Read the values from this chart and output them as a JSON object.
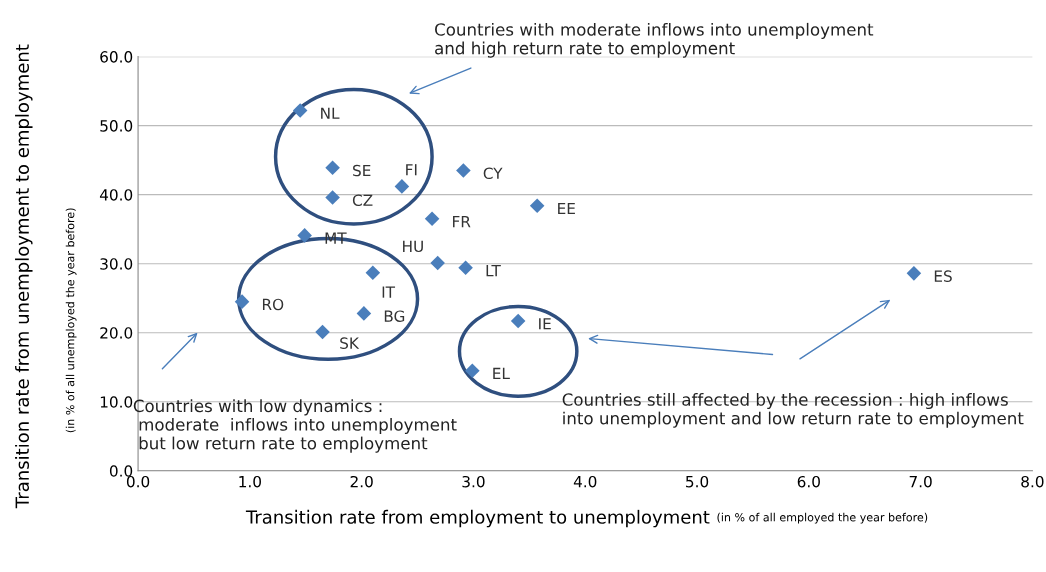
{
  "chart_data": {
    "type": "scatter",
    "xlabel": "Transition rate from employment to unemployment",
    "ylabel": "Transition rate from unemployment to employment",
    "x": [
      1.45,
      1.74,
      2.36,
      2.91,
      1.74,
      3.57,
      2.63,
      1.49,
      2.68,
      2.93,
      2.1,
      6.94,
      0.93,
      2.02,
      3.4,
      1.65,
      2.99
    ],
    "series": [
      {
        "color": "#4a7ebb",
        "values": [
          52.2,
          43.9,
          41.2,
          43.5,
          39.6,
          38.4,
          36.5,
          34.1,
          30.1,
          29.4,
          28.7,
          28.6,
          24.5,
          22.8,
          21.7,
          20.1,
          14.5
        ]
      }
    ],
    "marker": "diamond",
    "xlim": [
      0,
      8
    ],
    "ylim": [
      0,
      60
    ],
    "xticks": [
      {
        "value": 0,
        "label": "0.0"
      },
      {
        "value": 1,
        "label": "1.0"
      },
      {
        "value": 2,
        "label": "2.0"
      },
      {
        "value": 3,
        "label": "3.0"
      },
      {
        "value": 4,
        "label": "4.0"
      },
      {
        "value": 5,
        "label": "5.0"
      },
      {
        "value": 6,
        "label": "6.0"
      },
      {
        "value": 7,
        "label": "7.0"
      },
      {
        "value": 8,
        "label": "8.0"
      }
    ],
    "yticks": [
      {
        "value": 0,
        "label": "0.0"
      },
      {
        "value": 10,
        "label": "10.0"
      },
      {
        "value": 20,
        "label": "20.0"
      },
      {
        "value": 30,
        "label": "30.0"
      },
      {
        "value": 40,
        "label": "40.0"
      },
      {
        "value": 50,
        "label": "50.0"
      },
      {
        "value": 60,
        "label": "60.0"
      }
    ],
    "grid": "y",
    "annotations": [
      {
        "text": "NL",
        "x": 1.45,
        "y": 52.2
      },
      {
        "text": "SE",
        "x": 1.74,
        "y": 43.9
      },
      {
        "text": "FI",
        "x": 2.36,
        "y": 41.2
      },
      {
        "text": "CY",
        "x": 2.91,
        "y": 43.5
      },
      {
        "text": "CZ",
        "x": 1.74,
        "y": 39.6
      },
      {
        "text": "EE",
        "x": 3.57,
        "y": 38.4
      },
      {
        "text": "FR",
        "x": 2.63,
        "y": 36.5
      },
      {
        "text": "MT",
        "x": 1.49,
        "y": 34.1
      },
      {
        "text": "HU",
        "x": 2.68,
        "y": 30.1
      },
      {
        "text": "LT",
        "x": 2.93,
        "y": 29.4
      },
      {
        "text": "IT",
        "x": 2.1,
        "y": 28.7
      },
      {
        "text": "ES",
        "x": 6.94,
        "y": 28.6
      },
      {
        "text": "RO",
        "x": 0.93,
        "y": 24.5
      },
      {
        "text": "BG",
        "x": 2.02,
        "y": 22.8
      },
      {
        "text": "IE",
        "x": 3.4,
        "y": 21.7
      },
      {
        "text": "SK",
        "x": 1.65,
        "y": 20.1
      },
      {
        "text": "EL",
        "x": 2.99,
        "y": 14.5
      },
      "Countries with moderate inflows into unemployment\nand high return rate to employment",
      "Countries with low dynamics :\n moderate  inflows into unemployment\n but low return rate to employment",
      "Countries still affected by the recession : high inflows\ninto unemployment and low return rate to employment",
      "(in % of all employed the year before)",
      "(in % of all unemployed the year before)"
    ]
  }
}
